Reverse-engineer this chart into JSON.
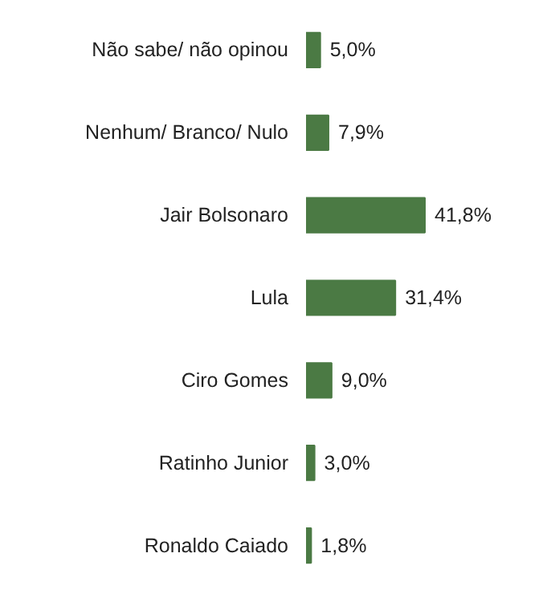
{
  "chart_data": {
    "type": "bar",
    "orientation": "horizontal",
    "categories": [
      "Não sabe/ não opinou",
      "Nenhum/ Branco/ Nulo",
      "Jair Bolsonaro",
      "Lula",
      "Ciro Gomes",
      "Ratinho Junior",
      "Ronaldo Caiado"
    ],
    "values": [
      5.0,
      7.9,
      41.8,
      31.4,
      9.0,
      3.0,
      1.8
    ],
    "value_labels": [
      "5,0%",
      "7,9%",
      "41,8%",
      "31,4%",
      "9,0%",
      "3,0%",
      "1,8%"
    ],
    "color": "#4b7a44"
  }
}
